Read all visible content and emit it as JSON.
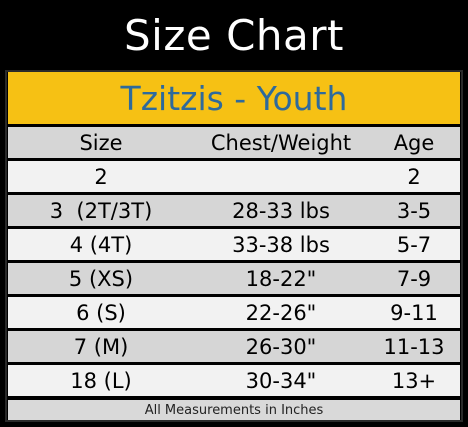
{
  "title": "Size Chart",
  "banner": "Tzitzis - Youth",
  "colors": {
    "background": "#000000",
    "title_text": "#ffffff",
    "banner_bg": "#f6c114",
    "banner_text": "#2e6a9c",
    "row_light": "#f2f2f2",
    "row_gray": "#d6d6d6"
  },
  "table": {
    "headers": [
      "Size",
      "Chest/Weight",
      "Age"
    ],
    "rows": [
      [
        "2",
        "",
        "2"
      ],
      [
        "3  (2T/3T)",
        "28-33 lbs",
        "3-5"
      ],
      [
        "4 (4T)",
        "33-38 lbs",
        "5-7"
      ],
      [
        "5 (XS)",
        "18-22\"",
        "7-9"
      ],
      [
        "6 (S)",
        "22-26\"",
        "9-11"
      ],
      [
        "7 (M)",
        "26-30\"",
        "11-13"
      ],
      [
        "18 (L)",
        "30-34\"",
        "13+"
      ]
    ]
  },
  "footer": "All Measurements in Inches"
}
